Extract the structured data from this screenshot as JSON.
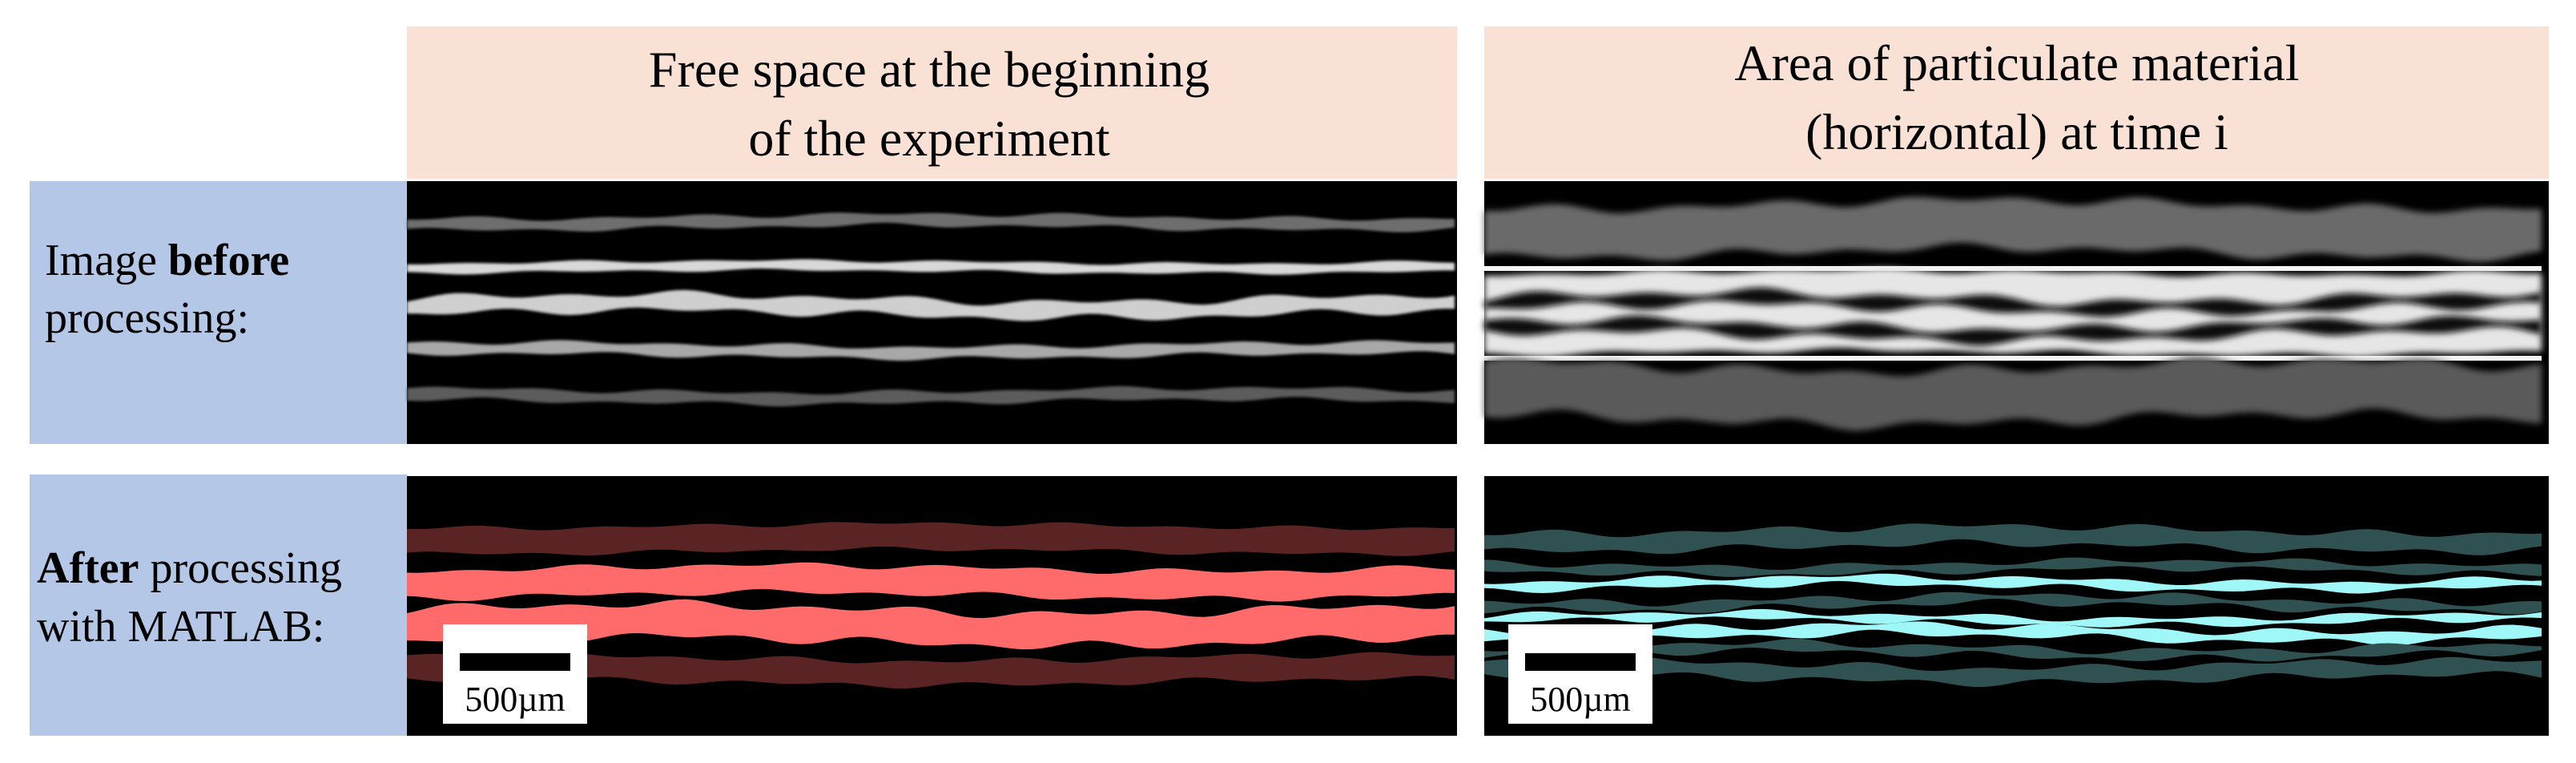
{
  "columns": [
    {
      "lines": [
        "Free space at the beginning",
        "of the experiment"
      ]
    },
    {
      "lines": [
        "Area of particulate material",
        "(horizontal) at time i"
      ]
    }
  ],
  "rows": [
    {
      "lines": [
        [
          "Image ",
          "before"
        ],
        [
          "processing:"
        ]
      ]
    },
    {
      "lines": [
        [
          "After",
          " processing"
        ],
        [
          "with MATLAB:"
        ]
      ]
    }
  ],
  "scale_bar_labels": [
    "500µm",
    "500µm"
  ]
}
